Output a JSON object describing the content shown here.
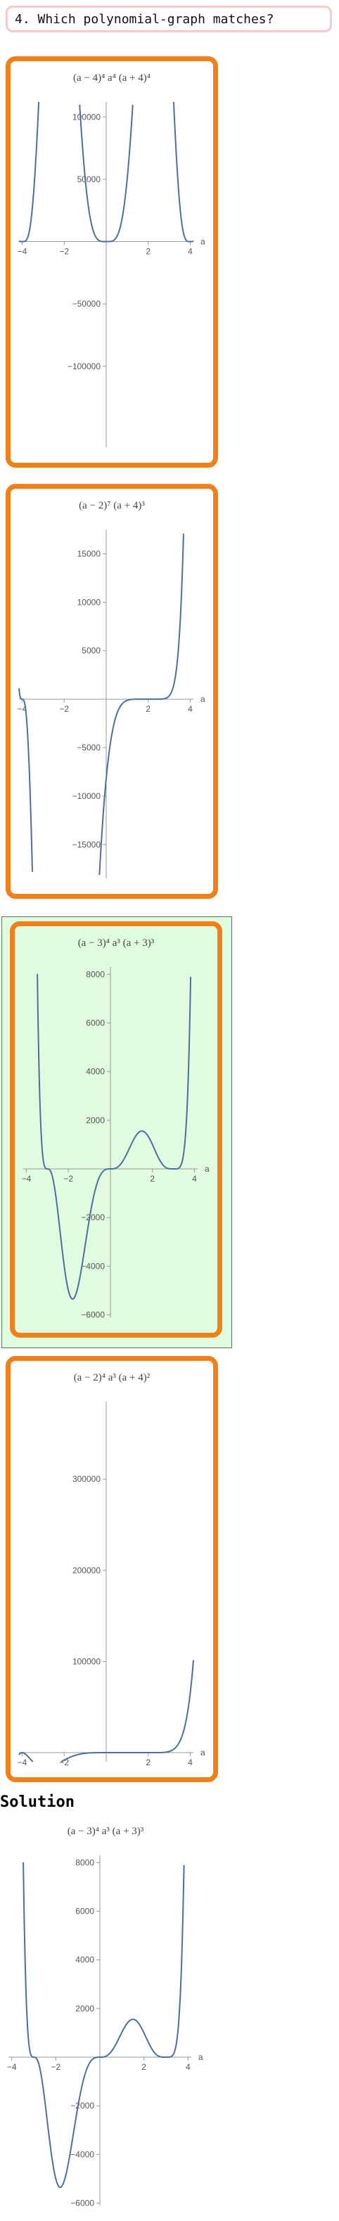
{
  "question": {
    "text": "4. Which polynomial-graph matches?"
  },
  "solution_label": "Solution",
  "chart_data": [
    {
      "type": "line",
      "title": "(a − 4)⁴ a⁴ (a + 4)⁴",
      "xlabel": "a",
      "expr": {
        "roots": [
          [
            4,
            4
          ],
          [
            0,
            4
          ],
          [
            -4,
            4
          ]
        ]
      },
      "xlim": [
        -4.15,
        4.15
      ],
      "ylim": [
        -165000,
        112000
      ],
      "xticks": [
        -4,
        -2,
        2,
        4
      ],
      "yticks": [
        -100000,
        -50000,
        50000,
        100000
      ],
      "ytick_labels": [
        "−100000",
        "−50000",
        "50000",
        "100000"
      ],
      "xtick_labels": [
        "−4",
        "−2",
        "2",
        "4"
      ]
    },
    {
      "type": "line",
      "title": "(a − 2)⁷ (a + 4)³",
      "xlabel": "a",
      "expr": {
        "roots": [
          [
            2,
            7
          ],
          [
            -4,
            3
          ]
        ]
      },
      "xlim": [
        -4.15,
        4.15
      ],
      "ylim": [
        -18500,
        17500
      ],
      "xticks": [
        -4,
        -2,
        2,
        4
      ],
      "yticks": [
        -15000,
        -10000,
        -5000,
        5000,
        10000,
        15000
      ],
      "ytick_labels": [
        "−15000",
        "−10000",
        "−5000",
        "5000",
        "10000",
        "15000"
      ],
      "xtick_labels": [
        "−4",
        "−2",
        "2",
        "4"
      ]
    },
    {
      "type": "line",
      "title": "(a − 3)⁴ a³ (a + 3)³",
      "xlabel": "a",
      "expr": {
        "roots": [
          [
            3,
            4
          ],
          [
            0,
            3
          ],
          [
            -3,
            3
          ]
        ]
      },
      "xlim": [
        -4.15,
        4.15
      ],
      "ylim": [
        -6100,
        8300
      ],
      "xticks": [
        -4,
        -2,
        2,
        4
      ],
      "yticks": [
        -6000,
        -4000,
        -2000,
        2000,
        4000,
        6000,
        8000
      ],
      "ytick_labels": [
        "−6000",
        "−4000",
        "−2000",
        "2000",
        "4000",
        "6000",
        "8000"
      ],
      "xtick_labels": [
        "−4",
        "−2",
        "2",
        "4"
      ]
    },
    {
      "type": "line",
      "title": "(a − 2)⁴ a³ (a + 4)²",
      "xlabel": "a",
      "expr": {
        "roots": [
          [
            2,
            4
          ],
          [
            0,
            3
          ],
          [
            -4,
            2
          ]
        ]
      },
      "xlim": [
        -4.15,
        4.15
      ],
      "ylim": [
        -10000,
        385000
      ],
      "xticks": [
        -4,
        -2,
        2,
        4
      ],
      "yticks": [
        100000,
        200000,
        300000
      ],
      "ytick_labels": [
        "100000",
        "200000",
        "300000"
      ],
      "xtick_labels": [
        "−4",
        "−2",
        "2",
        "4"
      ]
    },
    {
      "type": "line",
      "title": "(a − 3)⁴ a³ (a + 3)³",
      "xlabel": "a",
      "expr": {
        "roots": [
          [
            3,
            4
          ],
          [
            0,
            3
          ],
          [
            -3,
            3
          ]
        ]
      },
      "xlim": [
        -4.15,
        4.15
      ],
      "ylim": [
        -6100,
        8300
      ],
      "xticks": [
        -4,
        -2,
        2,
        4
      ],
      "yticks": [
        -6000,
        -4000,
        -2000,
        2000,
        4000,
        6000,
        8000
      ],
      "ytick_labels": [
        "−6000",
        "−4000",
        "−2000",
        "2000",
        "4000",
        "6000",
        "8000"
      ],
      "xtick_labels": [
        "−4",
        "−2",
        "2",
        "4"
      ]
    }
  ]
}
